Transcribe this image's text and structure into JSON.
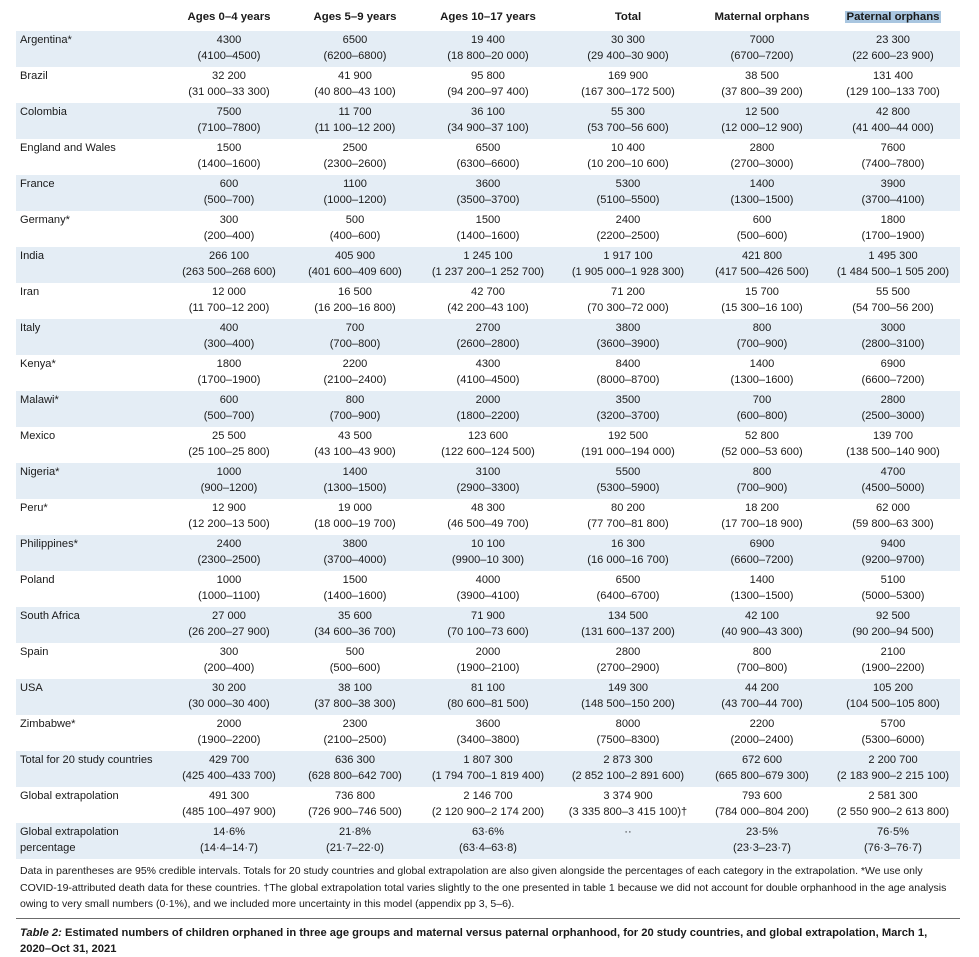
{
  "columns": [
    "",
    "Ages 0–4 years",
    "Ages 5–9 years",
    "Ages 10–17 years",
    "Total",
    "Maternal orphans",
    "Paternal orphans"
  ],
  "rows": [
    {
      "label": "Argentina*",
      "cells": [
        [
          "4300",
          "(4100–4500)"
        ],
        [
          "6500",
          "(6200–6800)"
        ],
        [
          "19 400",
          "(18 800–20 000)"
        ],
        [
          "30 300",
          "(29 400–30 900)"
        ],
        [
          "7000",
          "(6700–7200)"
        ],
        [
          "23 300",
          "(22 600–23 900)"
        ]
      ]
    },
    {
      "label": "Brazil",
      "cells": [
        [
          "32 200",
          "(31 000–33 300)"
        ],
        [
          "41 900",
          "(40 800–43 100)"
        ],
        [
          "95 800",
          "(94 200–97 400)"
        ],
        [
          "169 900",
          "(167 300–172 500)"
        ],
        [
          "38 500",
          "(37 800–39 200)"
        ],
        [
          "131 400",
          "(129 100–133 700)"
        ]
      ]
    },
    {
      "label": "Colombia",
      "cells": [
        [
          "7500",
          "(7100–7800)"
        ],
        [
          "11 700",
          "(11 100–12 200)"
        ],
        [
          "36 100",
          "(34 900–37 100)"
        ],
        [
          "55 300",
          "(53 700–56 600)"
        ],
        [
          "12 500",
          "(12 000–12 900)"
        ],
        [
          "42 800",
          "(41 400–44 000)"
        ]
      ]
    },
    {
      "label": "England and Wales",
      "cells": [
        [
          "1500",
          "(1400–1600)"
        ],
        [
          "2500",
          "(2300–2600)"
        ],
        [
          "6500",
          "(6300–6600)"
        ],
        [
          "10 400",
          "(10 200–10 600)"
        ],
        [
          "2800",
          "(2700–3000)"
        ],
        [
          "7600",
          "(7400–7800)"
        ]
      ]
    },
    {
      "label": "France",
      "cells": [
        [
          "600",
          "(500–700)"
        ],
        [
          "1100",
          "(1000–1200)"
        ],
        [
          "3600",
          "(3500–3700)"
        ],
        [
          "5300",
          "(5100–5500)"
        ],
        [
          "1400",
          "(1300–1500)"
        ],
        [
          "3900",
          "(3700–4100)"
        ]
      ]
    },
    {
      "label": "Germany*",
      "cells": [
        [
          "300",
          "(200–400)"
        ],
        [
          "500",
          "(400–600)"
        ],
        [
          "1500",
          "(1400–1600)"
        ],
        [
          "2400",
          "(2200–2500)"
        ],
        [
          "600",
          "(500–600)"
        ],
        [
          "1800",
          "(1700–1900)"
        ]
      ]
    },
    {
      "label": "India",
      "cells": [
        [
          "266 100",
          "(263 500–268 600)"
        ],
        [
          "405 900",
          "(401 600–409 600)"
        ],
        [
          "1 245 100",
          "(1 237 200–1 252 700)"
        ],
        [
          "1 917 100",
          "(1 905 000–1 928 300)"
        ],
        [
          "421 800",
          "(417 500–426 500)"
        ],
        [
          "1 495 300",
          "(1 484 500–1 505 200)"
        ]
      ]
    },
    {
      "label": "Iran",
      "cells": [
        [
          "12 000",
          "(11 700–12 200)"
        ],
        [
          "16 500",
          "(16 200–16 800)"
        ],
        [
          "42 700",
          "(42 200–43 100)"
        ],
        [
          "71 200",
          "(70 300–72 000)"
        ],
        [
          "15 700",
          "(15 300–16 100)"
        ],
        [
          "55 500",
          "(54 700–56 200)"
        ]
      ]
    },
    {
      "label": "Italy",
      "cells": [
        [
          "400",
          "(300–400)"
        ],
        [
          "700",
          "(700–800)"
        ],
        [
          "2700",
          "(2600–2800)"
        ],
        [
          "3800",
          "(3600–3900)"
        ],
        [
          "800",
          "(700–900)"
        ],
        [
          "3000",
          "(2800–3100)"
        ]
      ]
    },
    {
      "label": "Kenya*",
      "cells": [
        [
          "1800",
          "(1700–1900)"
        ],
        [
          "2200",
          "(2100–2400)"
        ],
        [
          "4300",
          "(4100–4500)"
        ],
        [
          "8400",
          "(8000–8700)"
        ],
        [
          "1400",
          "(1300–1600)"
        ],
        [
          "6900",
          "(6600–7200)"
        ]
      ]
    },
    {
      "label": "Malawi*",
      "cells": [
        [
          "600",
          "(500–700)"
        ],
        [
          "800",
          "(700–900)"
        ],
        [
          "2000",
          "(1800–2200)"
        ],
        [
          "3500",
          "(3200–3700)"
        ],
        [
          "700",
          "(600–800)"
        ],
        [
          "2800",
          "(2500–3000)"
        ]
      ]
    },
    {
      "label": "Mexico",
      "cells": [
        [
          "25 500",
          "(25 100–25 800)"
        ],
        [
          "43 500",
          "(43 100–43 900)"
        ],
        [
          "123 600",
          "(122 600–124 500)"
        ],
        [
          "192 500",
          "(191 000–194 000)"
        ],
        [
          "52 800",
          "(52 000–53 600)"
        ],
        [
          "139 700",
          "(138 500–140 900)"
        ]
      ]
    },
    {
      "label": "Nigeria*",
      "cells": [
        [
          "1000",
          "(900–1200)"
        ],
        [
          "1400",
          "(1300–1500)"
        ],
        [
          "3100",
          "(2900–3300)"
        ],
        [
          "5500",
          "(5300–5900)"
        ],
        [
          "800",
          "(700–900)"
        ],
        [
          "4700",
          "(4500–5000)"
        ]
      ]
    },
    {
      "label": "Peru*",
      "cells": [
        [
          "12 900",
          "(12 200–13 500)"
        ],
        [
          "19 000",
          "(18 000–19 700)"
        ],
        [
          "48 300",
          "(46 500–49 700)"
        ],
        [
          "80 200",
          "(77 700–81 800)"
        ],
        [
          "18 200",
          "(17 700–18 900)"
        ],
        [
          "62 000",
          "(59 800–63 300)"
        ]
      ]
    },
    {
      "label": "Philippines*",
      "cells": [
        [
          "2400",
          "(2300–2500)"
        ],
        [
          "3800",
          "(3700–4000)"
        ],
        [
          "10 100",
          "(9900–10 300)"
        ],
        [
          "16 300",
          "(16 000–16 700)"
        ],
        [
          "6900",
          "(6600–7200)"
        ],
        [
          "9400",
          "(9200–9700)"
        ]
      ]
    },
    {
      "label": "Poland",
      "cells": [
        [
          "1000",
          "(1000–1100)"
        ],
        [
          "1500",
          "(1400–1600)"
        ],
        [
          "4000",
          "(3900–4100)"
        ],
        [
          "6500",
          "(6400–6700)"
        ],
        [
          "1400",
          "(1300–1500)"
        ],
        [
          "5100",
          "(5000–5300)"
        ]
      ]
    },
    {
      "label": "South Africa",
      "cells": [
        [
          "27 000",
          "(26 200–27 900)"
        ],
        [
          "35 600",
          "(34 600–36 700)"
        ],
        [
          "71 900",
          "(70 100–73 600)"
        ],
        [
          "134 500",
          "(131 600–137 200)"
        ],
        [
          "42 100",
          "(40 900–43 300)"
        ],
        [
          "92 500",
          "(90 200–94 500)"
        ]
      ]
    },
    {
      "label": "Spain",
      "cells": [
        [
          "300",
          "(200–400)"
        ],
        [
          "500",
          "(500–600)"
        ],
        [
          "2000",
          "(1900–2100)"
        ],
        [
          "2800",
          "(2700–2900)"
        ],
        [
          "800",
          "(700–800)"
        ],
        [
          "2100",
          "(1900–2200)"
        ]
      ]
    },
    {
      "label": "USA",
      "cells": [
        [
          "30 200",
          "(30 000–30 400)"
        ],
        [
          "38 100",
          "(37 800–38 300)"
        ],
        [
          "81 100",
          "(80 600–81 500)"
        ],
        [
          "149 300",
          "(148 500–150 200)"
        ],
        [
          "44 200",
          "(43 700–44 700)"
        ],
        [
          "105 200",
          "(104 500–105 800)"
        ]
      ]
    },
    {
      "label": "Zimbabwe*",
      "cells": [
        [
          "2000",
          "(1900–2200)"
        ],
        [
          "2300",
          "(2100–2500)"
        ],
        [
          "3600",
          "(3400–3800)"
        ],
        [
          "8000",
          "(7500–8300)"
        ],
        [
          "2200",
          "(2000–2400)"
        ],
        [
          "5700",
          "(5300–6000)"
        ]
      ]
    },
    {
      "label": "Total for 20 study countries",
      "cells": [
        [
          "429 700",
          "(425 400–433 700)"
        ],
        [
          "636 300",
          "(628 800–642 700)"
        ],
        [
          "1 807 300",
          "(1 794 700–1 819 400)"
        ],
        [
          "2 873 300",
          "(2 852 100–2 891 600)"
        ],
        [
          "672 600",
          "(665 800–679 300)"
        ],
        [
          "2 200 700",
          "(2 183 900–2 215 100)"
        ]
      ]
    },
    {
      "label": "Global extrapolation",
      "cells": [
        [
          "491 300",
          "(485 100–497 900)"
        ],
        [
          "736 800",
          "(726 900–746 500)"
        ],
        [
          "2 146 700",
          "(2 120 900–2 174 200)"
        ],
        [
          "3 374 900",
          "(3 335 800–3 415 100)†"
        ],
        [
          "793 600",
          "(784 000–804 200)"
        ],
        [
          "2 581 300",
          "(2 550 900–2 613 800)"
        ]
      ]
    },
    {
      "label": "Global extrapolation percentage",
      "cells": [
        [
          "14·6%",
          "(14·4–14·7)"
        ],
        [
          "21·8%",
          "(21·7–22·0)"
        ],
        [
          "63·6%",
          "(63·4–63·8)"
        ],
        [
          "··",
          ""
        ],
        [
          "23·5%",
          "(23·3–23·7)"
        ],
        [
          "76·5%",
          "(76·3–76·7)"
        ]
      ]
    }
  ],
  "footnote": "Data in parentheses are 95% credible intervals. Totals for 20 study countries and global extrapolation are also given alongside the percentages of each category in the extrapolation. *We use only COVID-19-attributed death data for these countries. †The global extrapolation total varies slightly to the one presented in table 1 because we did not account for double orphanhood in the age analysis owing to very small numbers (0·1%), and we included more uncertainty in this model (appendix pp 3, 5–6).",
  "caption": {
    "table_label": "Table 2:",
    "text": " Estimated numbers of children orphaned in three age groups and maternal versus paternal orphanhood, for 20 study countries, and global extrapolation, March 1, 2020–Oct 31, 2021"
  },
  "colors": {
    "row_shade": "#e4edf5",
    "header_highlight": "#a9c6e0"
  }
}
